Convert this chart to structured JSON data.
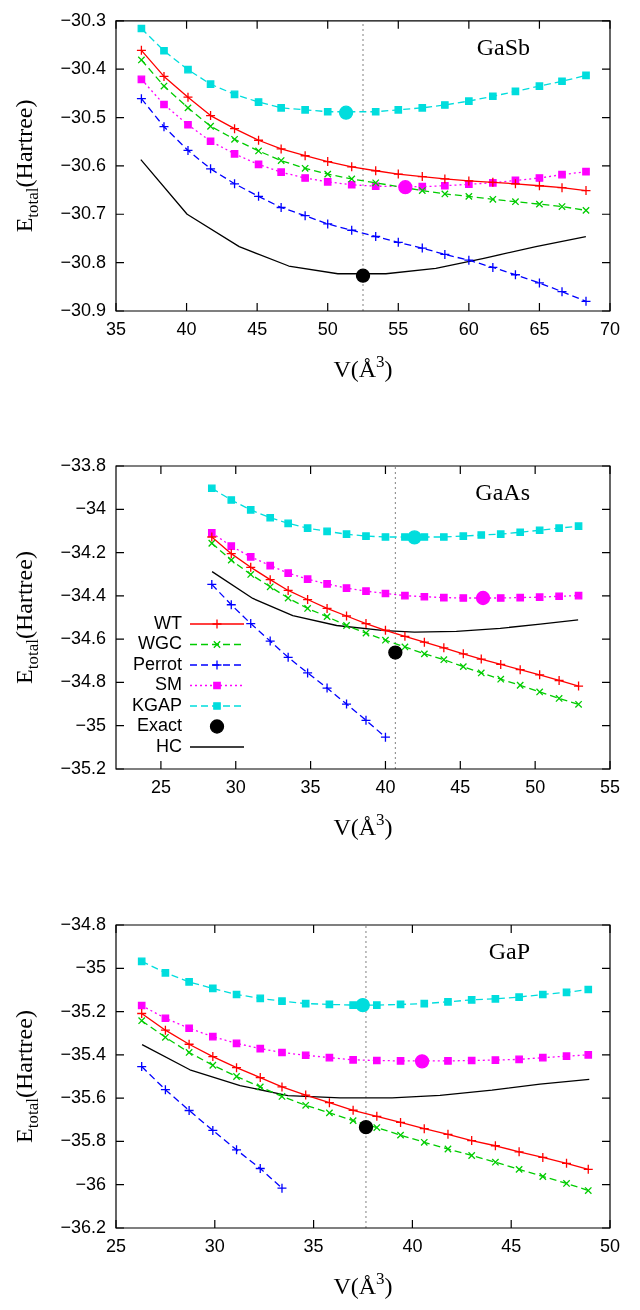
{
  "chart_data": [
    {
      "type": "line",
      "title": "GaSb",
      "xlabel": "V(Å$^{3}$)",
      "ylabel": "E$_{total}$(Hartree)",
      "xlim": [
        35,
        70
      ],
      "ylim": [
        -30.9,
        -30.3
      ],
      "xticks": [
        35,
        40,
        45,
        50,
        55,
        60,
        65,
        70
      ],
      "yticks": [
        {
          "value": -30.9,
          "label": "−30.9"
        },
        {
          "value": -30.8,
          "label": "−30.8"
        },
        {
          "value": -30.7,
          "label": "−30.7"
        },
        {
          "value": -30.6,
          "label": "−30.6"
        },
        {
          "value": -30.5,
          "label": "−30.5"
        },
        {
          "value": -30.4,
          "label": "−30.4"
        },
        {
          "value": -30.3,
          "label": "−30.3"
        }
      ],
      "x": [
        36.8,
        38.4,
        40.1,
        41.7,
        43.4,
        45.1,
        46.7,
        48.4,
        50.0,
        51.7,
        53.4,
        55.0,
        56.7,
        58.3,
        60.0,
        61.7,
        63.3,
        65.0,
        66.6,
        68.3
      ],
      "ref_lines": [
        {
          "axis": "x",
          "value": 52.5,
          "color": "#808080",
          "line_style": "dotted"
        }
      ],
      "series": [
        {
          "color": "#ff0000",
          "marker": "cross",
          "line_style": "solid",
          "values": [
            -30.361,
            -30.415,
            -30.458,
            -30.496,
            -30.523,
            -30.547,
            -30.565,
            -30.579,
            -30.591,
            -30.602,
            -30.61,
            -30.617,
            -30.622,
            -30.627,
            -30.631,
            -30.634,
            -30.637,
            -30.641,
            -30.645,
            -30.651
          ]
        },
        {
          "color": "#00cc00",
          "marker": "x",
          "line_style": "dashed",
          "values": [
            -30.381,
            -30.435,
            -30.48,
            -30.518,
            -30.545,
            -30.569,
            -30.589,
            -30.605,
            -30.617,
            -30.627,
            -30.635,
            null,
            -30.651,
            -30.658,
            -30.663,
            -30.669,
            -30.674,
            -30.679,
            -30.684,
            -30.692
          ]
        },
        {
          "color": "#0000ff",
          "marker": "cross",
          "line_style": "dashed",
          "values": [
            -30.461,
            -30.519,
            -30.568,
            -30.606,
            -30.637,
            -30.663,
            -30.686,
            -30.703,
            -30.72,
            -30.733,
            -30.746,
            -30.758,
            -30.77,
            -30.783,
            -30.795,
            -30.81,
            -30.825,
            -30.842,
            -30.86,
            -30.88
          ]
        },
        {
          "color": "#ff00ff",
          "marker": "square",
          "line_style": "dotted",
          "values": [
            -30.421,
            -30.473,
            -30.515,
            -30.549,
            -30.575,
            -30.597,
            -30.613,
            -30.625,
            -30.633,
            -30.639,
            -30.642,
            null,
            -30.643,
            -30.641,
            -30.638,
            -30.635,
            -30.63,
            -30.625,
            -30.618,
            -30.612
          ]
        },
        {
          "color": "#00dddd",
          "marker": "square",
          "line_style": "dashed",
          "values": [
            -30.316,
            -30.362,
            -30.401,
            -30.431,
            -30.452,
            -30.468,
            -30.48,
            -30.484,
            -30.488,
            null,
            -30.488,
            -30.484,
            -30.48,
            -30.474,
            -30.466,
            -30.456,
            -30.446,
            -30.435,
            -30.425,
            -30.413
          ]
        },
        {
          "type": "scatter",
          "color": "#000000",
          "marker": "circle",
          "x": [
            52.5
          ],
          "values": [
            -30.827
          ]
        },
        {
          "color": "#000000",
          "marker": "none",
          "line_style": "solid",
          "x": [
            36.76,
            40.04,
            43.73,
            47.24,
            50.72,
            54.12,
            57.66,
            61.06,
            64.75,
            68.29
          ],
          "values": [
            -30.587,
            -30.7,
            -30.767,
            -30.807,
            -30.823,
            -30.823,
            -30.812,
            -30.791,
            -30.767,
            -30.746
          ]
        },
        {
          "type": "scatter",
          "color": "#00dddd",
          "marker": "circle",
          "x": [
            51.3
          ],
          "values": [
            -30.49
          ]
        },
        {
          "type": "scatter",
          "color": "#ff00ff",
          "marker": "circle",
          "x": [
            55.5
          ],
          "values": [
            -30.644
          ]
        }
      ]
    },
    {
      "type": "line",
      "title": "GaAs",
      "xlabel": "V(Å$^{3}$)",
      "ylabel": "E$_{total}$(Hartree)",
      "xlim": [
        22,
        55
      ],
      "ylim": [
        -35.2,
        -33.8
      ],
      "legend": "bottom left",
      "xticks": [
        25,
        30,
        35,
        40,
        45,
        50,
        55
      ],
      "yticks": [
        {
          "value": -35.2,
          "label": "−35.2"
        },
        {
          "value": -35,
          "label": "−35"
        },
        {
          "value": -34.8,
          "label": "−34.8"
        },
        {
          "value": -34.6,
          "label": "−34.6"
        },
        {
          "value": -34.4,
          "label": "−34.4"
        },
        {
          "value": -34.2,
          "label": "−34.2"
        },
        {
          "value": -34,
          "label": "−34"
        },
        {
          "value": -33.8,
          "label": "−33.8"
        }
      ],
      "x": [
        28.4,
        29.7,
        31.0,
        32.3,
        33.5,
        34.8,
        36.1,
        37.4,
        38.7,
        40.0,
        41.3,
        42.6,
        43.9,
        45.2,
        46.4,
        47.7,
        49.0,
        50.3,
        51.6,
        52.9
      ],
      "ref_lines": [
        {
          "axis": "x",
          "value": 40.66,
          "color": "#808080",
          "line_style": "dotted"
        }
      ],
      "series": [
        {
          "name": "WT",
          "color": "#ff0000",
          "marker": "cross",
          "line_style": "solid",
          "values": [
            -34.128,
            -34.205,
            -34.268,
            -34.325,
            -34.375,
            -34.417,
            -34.458,
            -34.493,
            -34.528,
            -34.559,
            -34.587,
            -34.614,
            -34.64,
            -34.668,
            -34.692,
            -34.717,
            -34.741,
            -34.765,
            -34.791,
            -34.817
          ]
        },
        {
          "name": "WGC",
          "color": "#00cc00",
          "marker": "x",
          "line_style": "dashed",
          "values": [
            -34.157,
            -34.235,
            -34.301,
            -34.358,
            -34.41,
            -34.458,
            -34.496,
            -34.537,
            -34.572,
            -34.605,
            -34.636,
            -34.668,
            -34.695,
            -34.727,
            -34.756,
            -34.785,
            -34.813,
            -34.844,
            -34.874,
            -34.901
          ]
        },
        {
          "name": "Perrot",
          "color": "#0000ff",
          "marker": "cross",
          "line_style": "dashed",
          "x": [
            28.4,
            29.7,
            31.0,
            32.3,
            33.5,
            34.8,
            36.1,
            37.4,
            38.7,
            40.0
          ],
          "values": [
            -34.347,
            -34.441,
            -34.528,
            -34.609,
            -34.684,
            -34.756,
            -34.826,
            -34.9,
            -34.975,
            -35.053
          ]
        },
        {
          "name": "SM",
          "color": "#ff00ff",
          "marker": "square",
          "line_style": "dotted",
          "values": [
            -34.109,
            -34.17,
            -34.22,
            -34.26,
            -34.295,
            -34.323,
            -34.345,
            -34.364,
            -34.378,
            -34.389,
            -34.399,
            -34.404,
            -34.408,
            -34.41,
            -34.41,
            -34.41,
            -34.408,
            -34.406,
            -34.402,
            -34.399
          ]
        },
        {
          "name": "KGAP",
          "color": "#00dddd",
          "marker": "square",
          "line_style": "dashed",
          "values": [
            -33.903,
            -33.957,
            -34.003,
            -34.039,
            -34.065,
            -34.087,
            -34.102,
            -34.115,
            -34.124,
            -34.128,
            -34.128,
            -34.128,
            -34.128,
            -34.124,
            -34.119,
            -34.115,
            -34.106,
            -34.097,
            -34.087,
            -34.078
          ]
        },
        {
          "name": "Exact",
          "type": "scatter",
          "color": "#000000",
          "marker": "circle",
          "x": [
            40.66
          ],
          "values": [
            -34.662
          ]
        },
        {
          "name": "HC",
          "color": "#000000",
          "marker": "none",
          "line_style": "solid",
          "x": [
            28.42,
            31.14,
            33.81,
            36.74,
            39.94,
            41.94,
            44.74,
            47.67,
            50.34,
            52.87
          ],
          "values": [
            -34.288,
            -34.412,
            -34.491,
            -34.537,
            -34.561,
            -34.568,
            -34.564,
            -34.55,
            -34.531,
            -34.511
          ]
        },
        {
          "type": "scatter",
          "color": "#00dddd",
          "marker": "circle",
          "x": [
            41.94
          ],
          "values": [
            -34.13
          ]
        },
        {
          "type": "scatter",
          "color": "#ff00ff",
          "marker": "circle",
          "x": [
            46.52
          ],
          "values": [
            -34.41
          ]
        }
      ]
    },
    {
      "type": "line",
      "title": "GaP",
      "xlabel": "V(Å$^{3}$)",
      "ylabel": "E$_{total}$(Hartree)",
      "xlim": [
        25,
        50
      ],
      "ylim": [
        -36.2,
        -34.8
      ],
      "xticks": [
        25,
        30,
        35,
        40,
        45,
        50
      ],
      "yticks": [
        {
          "value": -36.2,
          "label": "−36.2"
        },
        {
          "value": -36,
          "label": "−36"
        },
        {
          "value": -35.8,
          "label": "−35.8"
        },
        {
          "value": -35.6,
          "label": "−35.6"
        },
        {
          "value": -35.4,
          "label": "−35.4"
        },
        {
          "value": -35.2,
          "label": "−35.2"
        },
        {
          "value": -35,
          "label": "−35"
        },
        {
          "value": -34.8,
          "label": "−34.8"
        }
      ],
      "x": [
        26.3,
        27.5,
        28.7,
        29.9,
        31.1,
        32.3,
        33.4,
        34.6,
        35.8,
        37.0,
        38.2,
        39.4,
        40.6,
        41.8,
        43.0,
        44.2,
        45.4,
        46.6,
        47.8,
        48.9
      ],
      "ref_lines": [
        {
          "axis": "x",
          "value": 37.65,
          "color": "#808080",
          "line_style": "dotted"
        }
      ],
      "series": [
        {
          "color": "#ff0000",
          "marker": "cross",
          "line_style": "solid",
          "values": [
            -35.209,
            -35.286,
            -35.351,
            -35.408,
            -35.459,
            -35.505,
            -35.548,
            -35.586,
            -35.621,
            -35.656,
            -35.684,
            -35.712,
            -35.741,
            -35.767,
            -35.796,
            -35.82,
            -35.848,
            -35.874,
            -35.901,
            -35.929
          ]
        },
        {
          "color": "#00cc00",
          "marker": "x",
          "line_style": "dashed",
          "values": [
            -35.242,
            -35.319,
            -35.389,
            -35.448,
            -35.5,
            -35.548,
            -35.592,
            -35.633,
            -35.668,
            -35.704,
            -35.736,
            -35.771,
            -35.804,
            -35.835,
            -35.865,
            -35.896,
            -35.929,
            -35.962,
            -35.994,
            -36.027
          ]
        },
        {
          "color": "#0000ff",
          "marker": "cross",
          "line_style": "dashed",
          "x": [
            26.3,
            27.5,
            28.7,
            29.9,
            31.1,
            32.3,
            33.4
          ],
          "values": [
            -35.454,
            -35.561,
            -35.657,
            -35.749,
            -35.839,
            -35.925,
            -36.016
          ]
        },
        {
          "color": "#ff00ff",
          "marker": "square",
          "line_style": "dotted",
          "values": [
            -35.172,
            -35.231,
            -35.277,
            -35.316,
            -35.347,
            -35.371,
            -35.389,
            -35.402,
            -35.413,
            -35.423,
            -35.426,
            -35.428,
            null,
            -35.428,
            -35.426,
            -35.424,
            -35.421,
            -35.413,
            -35.406,
            -35.4
          ]
        },
        {
          "color": "#00dddd",
          "marker": "square",
          "line_style": "dashed",
          "values": [
            -34.968,
            -35.021,
            -35.063,
            -35.093,
            -35.121,
            -35.139,
            -35.152,
            -35.163,
            -35.167,
            -35.17,
            -35.17,
            -35.167,
            -35.163,
            -35.155,
            -35.146,
            -35.141,
            -35.133,
            -35.121,
            -35.111,
            -35.098
          ]
        },
        {
          "type": "scatter",
          "color": "#000000",
          "marker": "circle",
          "x": [
            37.65
          ],
          "values": [
            -35.734
          ]
        },
        {
          "color": "#000000",
          "marker": "none",
          "line_style": "solid",
          "x": [
            26.32,
            28.74,
            31.28,
            33.7,
            36.34,
            38.97,
            41.4,
            44.03,
            46.46,
            48.95
          ],
          "values": [
            -35.353,
            -35.469,
            -35.542,
            -35.588,
            -35.599,
            -35.599,
            -35.587,
            -35.563,
            -35.535,
            -35.513
          ]
        },
        {
          "type": "scatter",
          "color": "#00dddd",
          "marker": "circle",
          "x": [
            37.49
          ],
          "values": [
            -35.17
          ]
        },
        {
          "type": "scatter",
          "color": "#ff00ff",
          "marker": "circle",
          "x": [
            40.49
          ],
          "values": [
            -35.43
          ]
        }
      ]
    }
  ]
}
